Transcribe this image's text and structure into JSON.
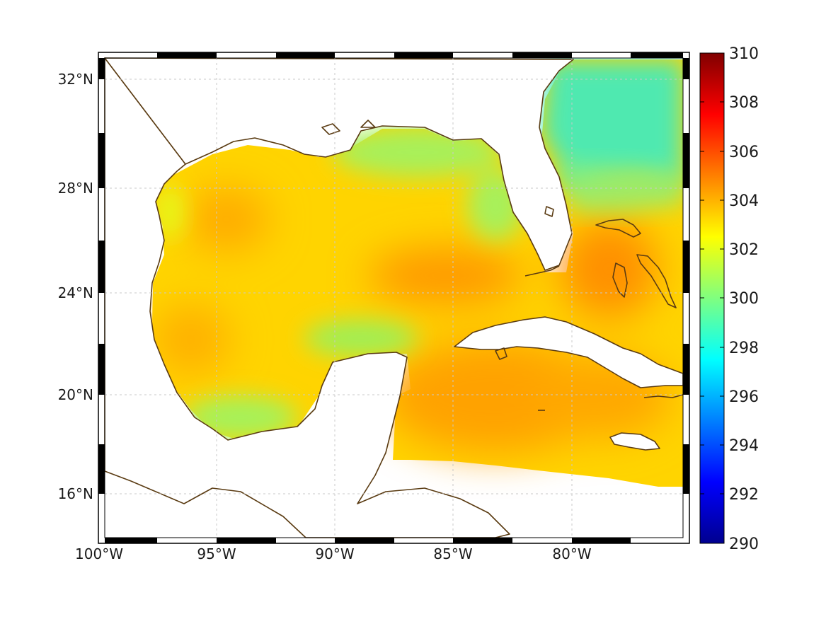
{
  "map": {
    "x_ticks": [
      "100°W",
      "95°W",
      "90°W",
      "85°W",
      "80°W"
    ],
    "y_ticks": [
      "32°N",
      "28°N",
      "24°N",
      "20°N",
      "16°N"
    ],
    "extent": {
      "lon_min": -100,
      "lon_max": -75,
      "lat_min": 14.2,
      "lat_max": 32.9
    }
  },
  "colorbar": {
    "min": 290,
    "max": 310,
    "ticks": [
      "310",
      "308",
      "306",
      "304",
      "302",
      "300",
      "298",
      "296",
      "294",
      "292",
      "290"
    ],
    "colormap": "jet",
    "colors": [
      "#00008f",
      "#0000ff",
      "#00ffff",
      "#ffff00",
      "#ff0000",
      "#800000"
    ]
  },
  "colors": {
    "coastline": "#5a3b12",
    "land": "#ffffff"
  }
}
